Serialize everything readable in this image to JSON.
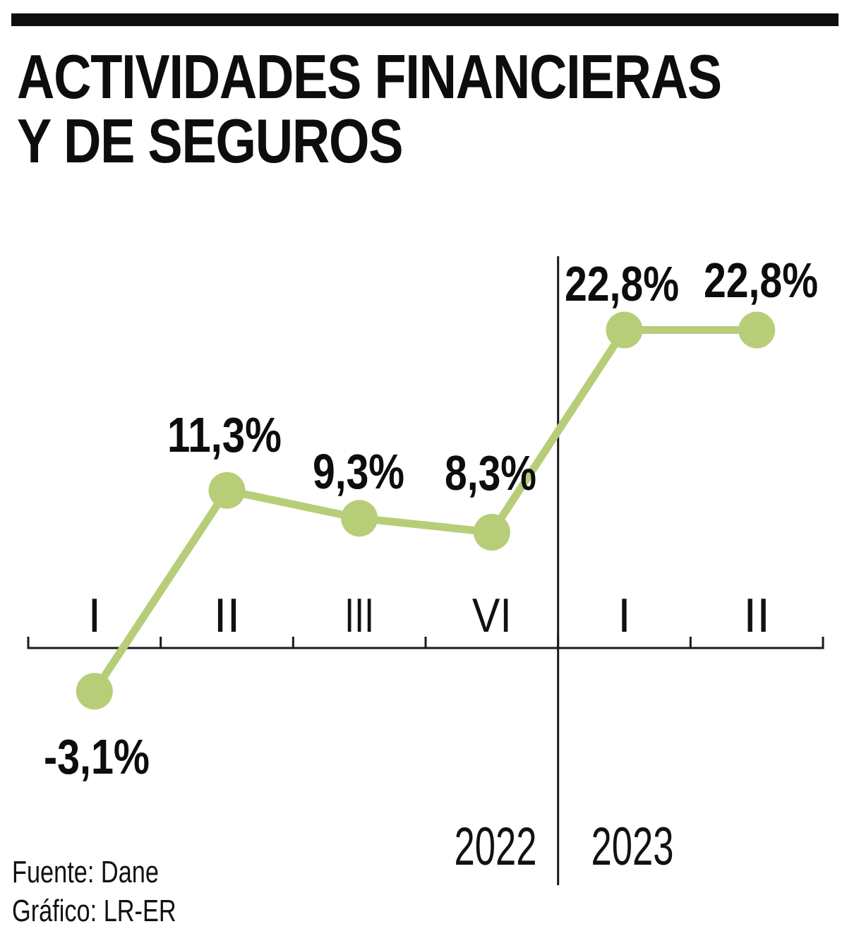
{
  "page": {
    "title_line1": "ACTIVIDADES FINANCIERAS",
    "title_line2": "Y DE SEGUROS",
    "source_label": "Fuente: Dane",
    "credit_label": "Gráfico: LR-ER"
  },
  "chart_data": {
    "type": "line",
    "title": "Actividades financieras y de seguros",
    "categories": [
      "I",
      "II",
      "III",
      "VI",
      "I",
      "II"
    ],
    "values": [
      -3.1,
      11.3,
      9.3,
      8.3,
      22.8,
      22.8
    ],
    "value_labels": [
      "-3,1%",
      "11,3%",
      "9,3%",
      "8,3%",
      "22,8%",
      "22,8%"
    ],
    "year_groups": [
      {
        "label": "2022",
        "span": 4
      },
      {
        "label": "2023",
        "span": 2
      }
    ],
    "divider_after_index": 3,
    "unit": "%",
    "ylim": [
      -5,
      25
    ],
    "baseline_value": 0,
    "grid": false,
    "legend": false,
    "point_markers": true,
    "series_color": "#b8cd78",
    "axis_color": "#1a1a1a",
    "label_color": "#0d0d0d"
  }
}
